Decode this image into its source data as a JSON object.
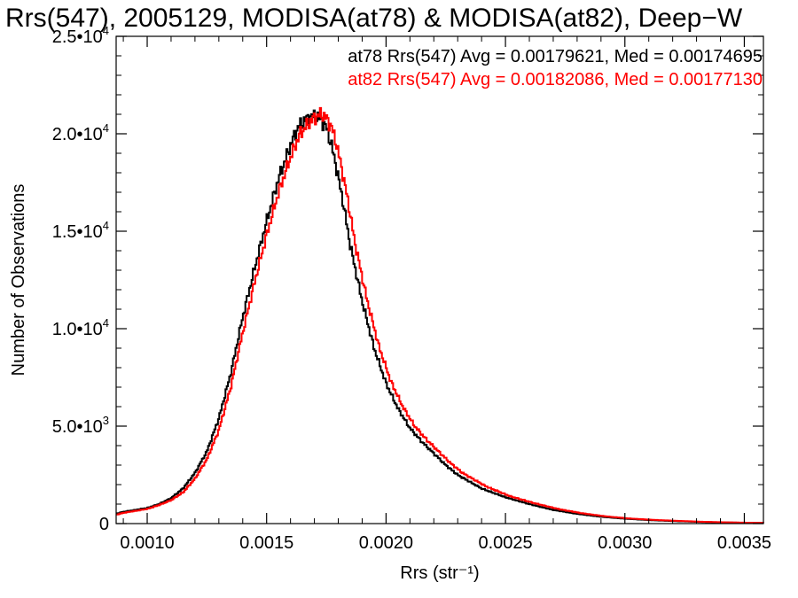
{
  "chart_data": {
    "type": "line",
    "title": "Rrs(547), 2005129, MODISA(at78) & MODISA(at82), Deep−W",
    "xlabel": "Rrs (str⁻¹)",
    "ylabel": "Number of Observations",
    "xlim": [
      0.00087,
      0.00358
    ],
    "ylim": [
      0,
      25000
    ],
    "x_ticks": [
      0.001,
      0.0015,
      0.002,
      0.0025,
      0.003,
      0.0035
    ],
    "x_tick_labels": [
      "0.0010",
      "0.0015",
      "0.0020",
      "0.0025",
      "0.0030",
      "0.0035"
    ],
    "y_ticks": [
      0,
      5000,
      10000,
      15000,
      20000,
      25000
    ],
    "y_tick_labels": [
      {
        "mantissa": "0",
        "exponent": ""
      },
      {
        "mantissa": "5.0•10",
        "exponent": "3"
      },
      {
        "mantissa": "1.0•10",
        "exponent": "4"
      },
      {
        "mantissa": "1.5•10",
        "exponent": "4"
      },
      {
        "mantissa": "2.0•10",
        "exponent": "4"
      },
      {
        "mantissa": "2.5•10",
        "exponent": "4"
      }
    ],
    "grid": false,
    "legend_placement": "top-right",
    "annotations": [
      {
        "text": "at78 Rrs(547) Avg = 0.00179621, Med = 0.00174695",
        "color": "#000000"
      },
      {
        "text": "at82 Rrs(547) Avg = 0.00182086, Med = 0.00177130",
        "color": "#ff0000"
      }
    ],
    "series": [
      {
        "color": "#000000",
        "x": [
          0.00087,
          0.0009,
          0.00095,
          0.001,
          0.00105,
          0.0011,
          0.00115,
          0.0012,
          0.00125,
          0.0013,
          0.00135,
          0.0014,
          0.00145,
          0.0015,
          0.00155,
          0.0016,
          0.00163,
          0.00166,
          0.00169,
          0.00171,
          0.00173,
          0.00175,
          0.00177,
          0.00179,
          0.00182,
          0.00185,
          0.0019,
          0.00195,
          0.002,
          0.00205,
          0.0021,
          0.00215,
          0.0022,
          0.00225,
          0.0023,
          0.0024,
          0.0025,
          0.0026,
          0.0027,
          0.0028,
          0.0029,
          0.003,
          0.0031,
          0.0032,
          0.0033,
          0.0034,
          0.0035,
          0.00358
        ],
        "y": [
          500,
          600,
          700,
          800,
          1000,
          1300,
          1800,
          2600,
          3700,
          5400,
          7700,
          10600,
          13100,
          15500,
          17700,
          19400,
          20300,
          20700,
          20900,
          20900,
          20700,
          20300,
          19500,
          18400,
          16500,
          14300,
          11400,
          9000,
          7200,
          5900,
          4900,
          4200,
          3600,
          3000,
          2500,
          1800,
          1350,
          1000,
          700,
          500,
          350,
          250,
          180,
          130,
          90,
          60,
          40,
          30
        ]
      },
      {
        "color": "#ff0000",
        "x": [
          0.00087,
          0.0009,
          0.00095,
          0.001,
          0.00105,
          0.0011,
          0.00115,
          0.0012,
          0.00125,
          0.0013,
          0.00135,
          0.0014,
          0.00145,
          0.0015,
          0.00155,
          0.0016,
          0.00164,
          0.00168,
          0.00171,
          0.00173,
          0.00175,
          0.00177,
          0.00179,
          0.00181,
          0.00184,
          0.00187,
          0.00192,
          0.00197,
          0.00202,
          0.00207,
          0.00212,
          0.00217,
          0.00222,
          0.00227,
          0.00232,
          0.00242,
          0.00252,
          0.00262,
          0.00272,
          0.00282,
          0.00292,
          0.00302,
          0.00312,
          0.00322,
          0.00332,
          0.00342,
          0.00352,
          0.00358
        ],
        "y": [
          450,
          550,
          650,
          750,
          950,
          1200,
          1600,
          2300,
          3300,
          4800,
          7000,
          9800,
          12400,
          14800,
          17000,
          18800,
          20000,
          20600,
          20900,
          21000,
          20800,
          20400,
          19600,
          18500,
          16600,
          14400,
          11500,
          9100,
          7300,
          6000,
          5000,
          4300,
          3700,
          3100,
          2600,
          1900,
          1400,
          1050,
          750,
          530,
          370,
          260,
          190,
          140,
          95,
          65,
          45,
          35
        ]
      }
    ]
  }
}
